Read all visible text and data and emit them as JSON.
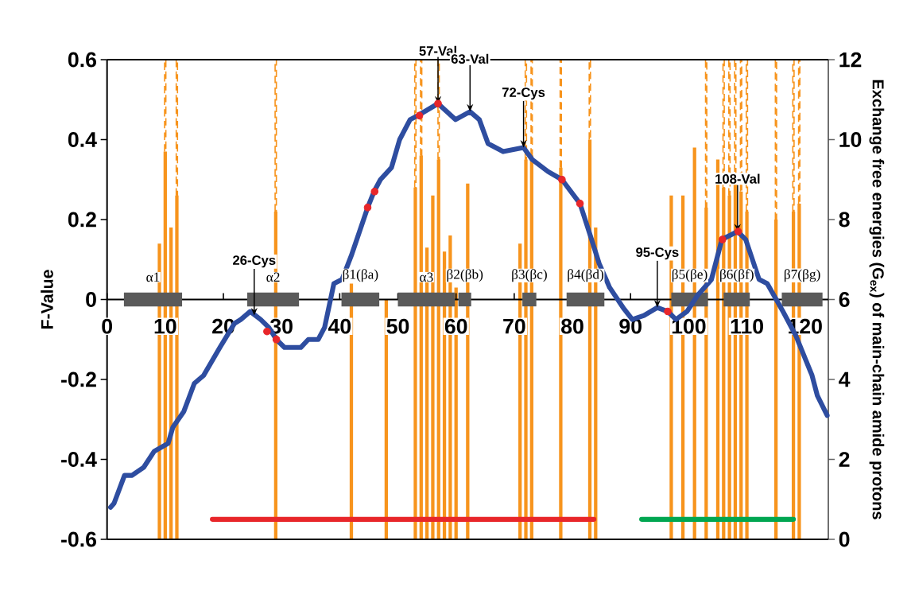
{
  "chart_data": {
    "type": "line",
    "ylabel": "F-Value",
    "y2label": "Exchange free energies (G$_{ex}$) of main-chain amide protons",
    "xlim": [
      0,
      124
    ],
    "xticks": [
      0,
      10,
      20,
      30,
      40,
      50,
      60,
      70,
      80,
      90,
      100,
      110,
      120
    ],
    "ylim": [
      -0.6,
      0.6
    ],
    "yticks": [
      -0.6,
      -0.4,
      -0.2,
      0,
      0.2,
      0.4,
      0.6
    ],
    "y2lim": [
      0,
      12
    ],
    "y2ticks": [
      0,
      2,
      4,
      6,
      8,
      10,
      12
    ],
    "stacked": true,
    "x": [
      9,
      10,
      11,
      12,
      29,
      42,
      48,
      53,
      54,
      55,
      56,
      57,
      58,
      59,
      60,
      62,
      71,
      72,
      73,
      78,
      83,
      84,
      97,
      99,
      101,
      103,
      105,
      106,
      107,
      108,
      109,
      110,
      115,
      118,
      119
    ],
    "series": [
      {
        "type": "bar",
        "axis": "y2",
        "color": "#f7941d",
        "values": [
          7.4,
          9.7,
          7.8,
          8.6,
          8.2,
          6.4,
          6.0,
          8.8,
          9.6,
          7.3,
          8.6,
          9.5,
          7.2,
          7.6,
          6.3,
          8.9,
          7.4,
          9.5,
          9.6,
          9.3,
          10.0,
          7.8,
          8.6,
          8.6,
          9.8,
          8.3,
          9.5,
          8.8,
          8.6,
          8.9,
          8.7,
          8.2,
          8.0,
          8.2,
          8.4
        ]
      },
      {
        "type": "bar",
        "axis": "y2",
        "color": "#f7941d",
        "line_style": "dashed",
        "values": [
          null,
          2.3,
          null,
          3.4,
          3.8,
          null,
          null,
          3.2,
          2.4,
          null,
          null,
          2.5,
          null,
          null,
          null,
          null,
          null,
          2.5,
          2.4,
          2.7,
          2.0,
          null,
          null,
          null,
          null,
          3.7,
          null,
          3.2,
          3.4,
          3.1,
          3.3,
          3.8,
          4.0,
          3.8,
          3.6
        ]
      },
      {
        "type": "line",
        "name": "α1",
        "color": "#5a5a5a",
        "x": [
          2.9,
          12.9
        ],
        "values": [
          0,
          0
        ]
      },
      {
        "type": "line",
        "name": "α2",
        "color": "#5a5a5a",
        "x": [
          24.1,
          33.0
        ],
        "values": [
          0,
          0
        ]
      },
      {
        "type": "line",
        "name": "β1(βa)",
        "color": "#5a5a5a",
        "x": [
          40.3,
          46.8
        ],
        "values": [
          0,
          0
        ]
      },
      {
        "type": "line",
        "name": "α3",
        "color": "#5a5a5a",
        "x": [
          50.0,
          59.8
        ],
        "values": [
          0,
          0
        ]
      },
      {
        "type": "line",
        "name": "β2(βb)",
        "color": "#5a5a5a",
        "x": [
          60.4,
          62.6
        ],
        "values": [
          0,
          0
        ]
      },
      {
        "type": "line",
        "name": "β3(βc)",
        "color": "#5a5a5a",
        "x": [
          71.4,
          73.8
        ],
        "values": [
          0,
          0
        ]
      },
      {
        "type": "line",
        "name": "β4(βd)",
        "color": "#5a5a5a",
        "x": [
          79.0,
          85.5
        ],
        "values": [
          0,
          0
        ]
      },
      {
        "type": "line",
        "name": "β5(βe)",
        "color": "#5a5a5a",
        "x": [
          97.0,
          103.3
        ],
        "values": [
          0,
          0
        ]
      },
      {
        "type": "line",
        "name": "β6(βf)",
        "color": "#5a5a5a",
        "x": [
          106.0,
          110.5
        ],
        "values": [
          0,
          0
        ]
      },
      {
        "type": "line",
        "name": "β7(βg)",
        "color": "#5a5a5a",
        "x": [
          116.0,
          123.0
        ],
        "values": [
          0,
          0
        ]
      },
      {
        "type": "line",
        "color": "#e8262a",
        "x": [
          18.1,
          83.7
        ],
        "values": [
          -0.55,
          -0.55
        ]
      },
      {
        "type": "line",
        "color": "#00a651",
        "x": [
          91.9,
          118.0
        ],
        "values": [
          -0.55,
          -0.55
        ]
      },
      {
        "color": "#2e4da0",
        "x": [
          0.6,
          1.2,
          3.0,
          4.3,
          6.3,
          8.1,
          10.5,
          11.3,
          13.2,
          15.0,
          16.6,
          19.4,
          21.9,
          23.0,
          24.6,
          26.4,
          27.8,
          29.1,
          30.5,
          33.3,
          34.6,
          36.3,
          37.4,
          39.0,
          40.4,
          42.0,
          44.8,
          45.9,
          47.0,
          48.9,
          50.3,
          52.1,
          53.4,
          56.9,
          59.9,
          62.4,
          64.0,
          65.5,
          68.1,
          71.6,
          73.1,
          75.8,
          78.2,
          81.3,
          83.3,
          84.6,
          86.4,
          88.7,
          90.3,
          92.3,
          94.6,
          96.4,
          97.8,
          99.7,
          101.5,
          103.9,
          105.7,
          108.4,
          109.8,
          112.1,
          113.5,
          116.2,
          118.4,
          121.2,
          122.1,
          123.8
        ],
        "values": [
          -0.52,
          -0.51,
          -0.44,
          -0.44,
          -0.42,
          -0.38,
          -0.36,
          -0.32,
          -0.28,
          -0.21,
          -0.19,
          -0.12,
          -0.06,
          -0.05,
          -0.03,
          -0.05,
          -0.07,
          -0.1,
          -0.12,
          -0.12,
          -0.1,
          -0.1,
          -0.07,
          0.04,
          0.05,
          0.11,
          0.23,
          0.27,
          0.3,
          0.33,
          0.4,
          0.45,
          0.46,
          0.49,
          0.45,
          0.47,
          0.45,
          0.39,
          0.37,
          0.38,
          0.35,
          0.32,
          0.3,
          0.24,
          0.15,
          0.09,
          0.03,
          -0.02,
          -0.05,
          -0.04,
          -0.02,
          -0.03,
          -0.05,
          -0.03,
          0.01,
          0.05,
          0.15,
          0.17,
          0.15,
          0.05,
          0.04,
          -0.03,
          -0.09,
          -0.19,
          -0.24,
          -0.29
        ]
      },
      {
        "type": "scatter",
        "color": "#e8262a",
        "x": [
          27.5,
          29.1,
          44.8,
          46.0,
          53.7,
          56.9,
          78.2,
          81.3,
          96.4,
          105.8,
          108.5
        ],
        "values": [
          -0.08,
          -0.1,
          0.23,
          0.27,
          0.46,
          0.49,
          0.3,
          0.24,
          -0.03,
          0.15,
          0.17
        ]
      }
    ],
    "annotations": [
      {
        "text": "26-Cys",
        "x": 25.3,
        "y": -0.04
      },
      {
        "text": "57-Val",
        "x": 56.9,
        "y": 0.49
      },
      {
        "text": "63-Val",
        "x": 62.4,
        "y": 0.47
      },
      {
        "text": "72-Cys",
        "x": 71.6,
        "y": 0.38
      },
      {
        "text": "95-Cys",
        "x": 94.6,
        "y": -0.02
      },
      {
        "text": "108-Val",
        "x": 108.4,
        "y": 0.17
      }
    ]
  }
}
